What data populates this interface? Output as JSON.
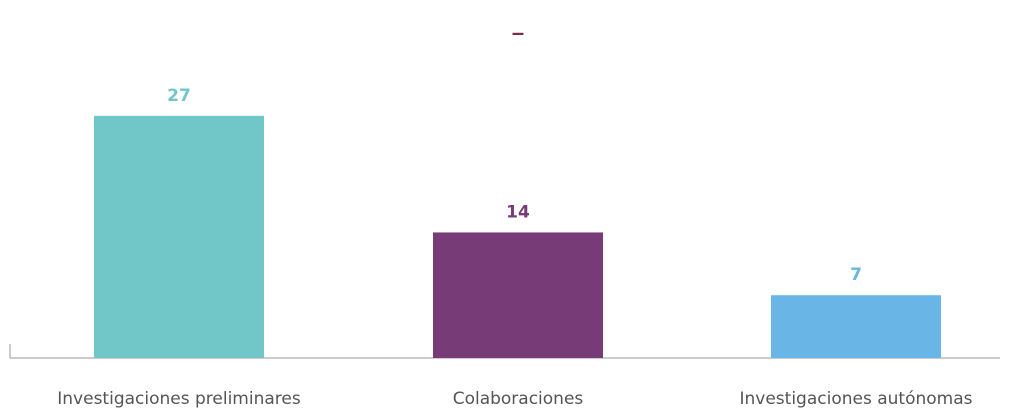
{
  "chart_data": {
    "type": "bar",
    "title": "–",
    "categories": [
      "Investigaciones preliminares",
      "Colaboraciones",
      "Investigaciones autónomas"
    ],
    "values": [
      27,
      14,
      7
    ],
    "colors": [
      "#71c6c7",
      "#773c78",
      "#69b5e6"
    ],
    "label_colors": [
      "#71c6c7",
      "#773c78",
      "#69b5e6"
    ],
    "xlabel": "",
    "ylabel": "",
    "ylim": [
      0,
      32
    ],
    "grid": false,
    "legend": "none"
  }
}
